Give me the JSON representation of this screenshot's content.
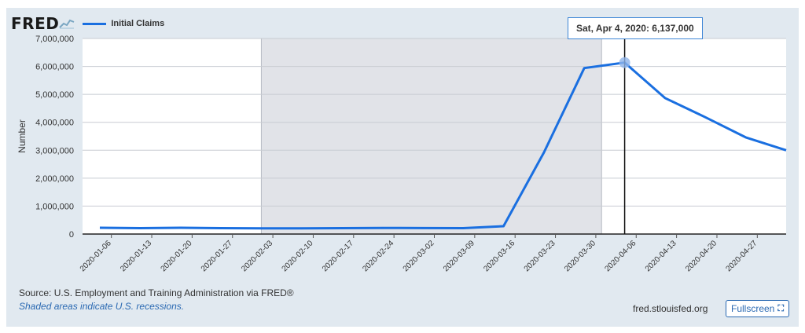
{
  "header": {
    "logo_text": "FRED",
    "logo_icon": "fred-graph-icon"
  },
  "tooltip": {
    "date": "Sat, Apr 4, 2020",
    "value": "6,137,000"
  },
  "footer": {
    "source": "Source: U.S. Employment and Training Administration via FRED®",
    "note": "Shaded areas indicate U.S. recessions.",
    "site": "fred.stlouisfed.org",
    "fullscreen_label": "Fullscreen",
    "fullscreen_icon": "expand-icon"
  },
  "colors": {
    "series": "#1a6fe0",
    "recession": "#e1e3e8",
    "background": "#e1e9f0"
  },
  "chart_data": {
    "type": "line",
    "ylabel": "Number",
    "ylim": [
      0,
      7000000
    ],
    "yticks": [
      0,
      1000000,
      2000000,
      3000000,
      4000000,
      5000000,
      6000000,
      7000000
    ],
    "ytick_labels": [
      "0",
      "1,000,000",
      "2,000,000",
      "3,000,000",
      "4,000,000",
      "5,000,000",
      "6,000,000",
      "7,000,000"
    ],
    "xlim": [
      "2020-01-01",
      "2020-05-02"
    ],
    "xtick_labels": [
      "2020-01-06",
      "2020-01-13",
      "2020-01-20",
      "2020-01-27",
      "2020-02-03",
      "2020-02-10",
      "2020-02-17",
      "2020-02-24",
      "2020-03-02",
      "2020-03-09",
      "2020-03-16",
      "2020-03-23",
      "2020-03-30",
      "2020-04-06",
      "2020-04-13",
      "2020-04-20",
      "2020-04-27"
    ],
    "grid": true,
    "recession": {
      "start": "2020-02-01",
      "end": "2020-03-31"
    },
    "highlight": {
      "x": "2020-04-04",
      "y": 6137000
    },
    "series": [
      {
        "name": "Initial Claims",
        "x": [
          "2020-01-04",
          "2020-01-11",
          "2020-01-18",
          "2020-01-25",
          "2020-02-01",
          "2020-02-08",
          "2020-02-15",
          "2020-02-22",
          "2020-02-29",
          "2020-03-07",
          "2020-03-14",
          "2020-03-21",
          "2020-03-28",
          "2020-04-04",
          "2020-04-11",
          "2020-04-18",
          "2020-04-25",
          "2020-05-02"
        ],
        "values": [
          225000,
          210000,
          225000,
          210000,
          205000,
          205000,
          210000,
          220000,
          215000,
          210000,
          280000,
          2920000,
          5940000,
          6137000,
          4870000,
          4180000,
          3460000,
          3000000
        ]
      }
    ]
  }
}
